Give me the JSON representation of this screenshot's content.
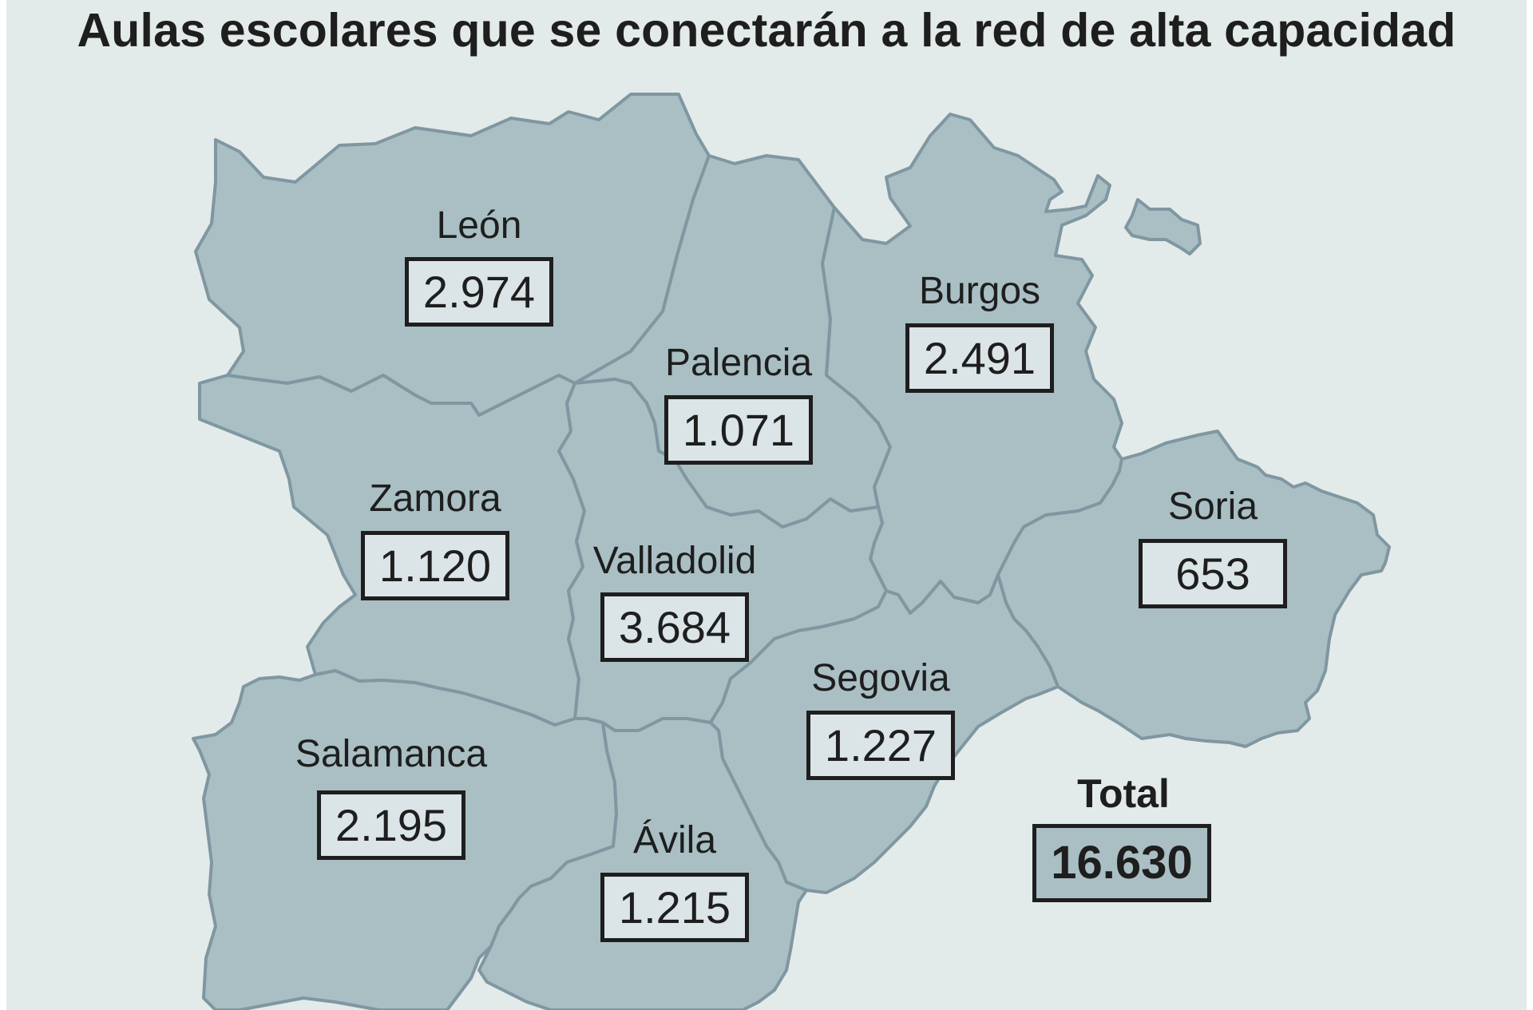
{
  "title": "Aulas escolares que se conectarán a la red de alta capacidad",
  "colors": {
    "background": "#e3eaea",
    "province_fill": "#a9bfc4",
    "province_border": "#7f97a1",
    "box_fill": "#dbe4e6",
    "text": "#1e1e1e"
  },
  "provinces": {
    "leon": {
      "name": "León",
      "value": "2.974"
    },
    "palencia": {
      "name": "Palencia",
      "value": "1.071"
    },
    "burgos": {
      "name": "Burgos",
      "value": "2.491"
    },
    "zamora": {
      "name": "Zamora",
      "value": "1.120"
    },
    "valladolid": {
      "name": "Valladolid",
      "value": "3.684"
    },
    "soria": {
      "name": "Soria",
      "value": "653"
    },
    "segovia": {
      "name": "Segovia",
      "value": "1.227"
    },
    "salamanca": {
      "name": "Salamanca",
      "value": "2.195"
    },
    "avila": {
      "name": "Ávila",
      "value": "1.215"
    }
  },
  "total": {
    "label": "Total",
    "value": "16.630"
  }
}
